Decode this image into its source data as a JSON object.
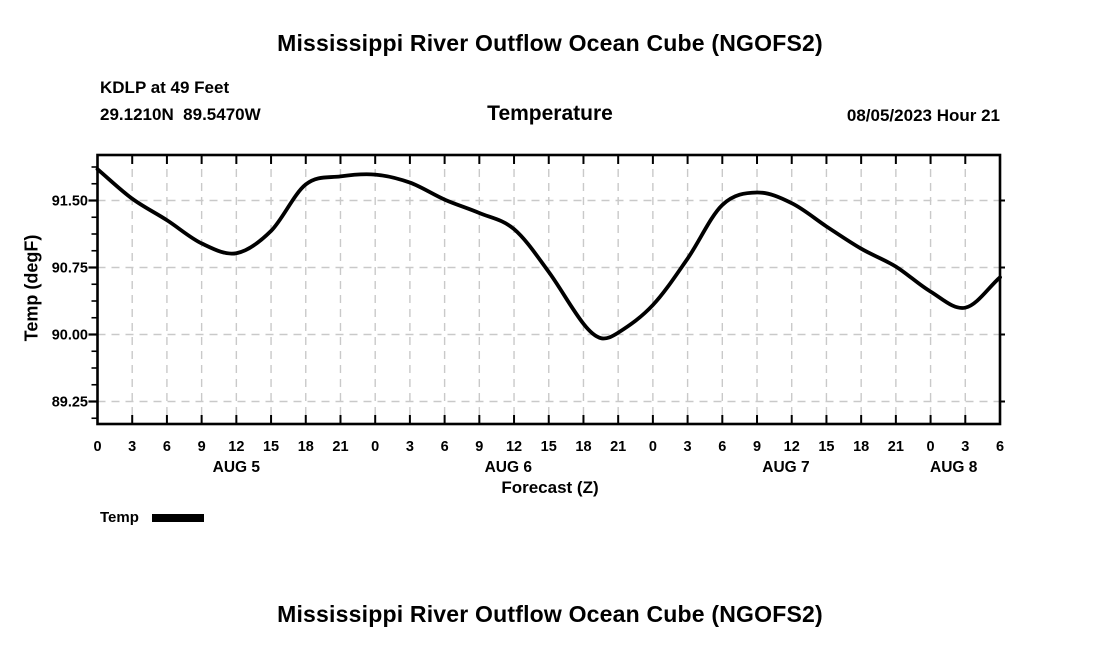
{
  "page": {
    "title_top": "Mississippi River Outflow Ocean Cube (NGOFS2)",
    "title_bottom": "Mississippi River Outflow Ocean Cube (NGOFS2)"
  },
  "header": {
    "station": "KDLP at 49 Feet",
    "coordinates": "29.1210N  89.5470W",
    "plot_heading": "Temperature",
    "datetime": "08/05/2023 Hour 21"
  },
  "legend": {
    "label": "Temp",
    "swatch_color": "#000000"
  },
  "chart_data": {
    "type": "line",
    "title": "Temperature",
    "xlabel": "Forecast (Z)",
    "ylabel": "Temp (degF)",
    "xlim_hours": [
      0,
      78
    ],
    "ylim": [
      89.0,
      92.01
    ],
    "grid": true,
    "grid_color": "#c9c9c9",
    "line_color": "#000000",
    "legend_position": "bottom-left",
    "x_tick_step_hours": 3,
    "x_tick_labels": [
      "0",
      "3",
      "6",
      "9",
      "12",
      "15",
      "18",
      "21",
      "0",
      "3",
      "6",
      "9",
      "12",
      "15",
      "18",
      "21",
      "0",
      "3",
      "6",
      "9",
      "12",
      "15",
      "18",
      "21",
      "0",
      "3",
      "6"
    ],
    "day_labels": [
      {
        "label": "AUG 5",
        "hour": 12
      },
      {
        "label": "AUG 6",
        "hour": 35.5
      },
      {
        "label": "AUG 7",
        "hour": 59.5
      },
      {
        "label": "AUG 8",
        "hour": 74
      }
    ],
    "y_major_ticks": [
      89.25,
      90.0,
      90.75,
      91.5
    ],
    "y_tick_labels": [
      "89.25",
      "90.00",
      "90.75",
      "91.50"
    ],
    "y_minor_step": 0.1875,
    "series": [
      {
        "name": "Temp",
        "color": "#000000",
        "x_hours": [
          0,
          3,
          6,
          9,
          12,
          15,
          18,
          21,
          24,
          27,
          30,
          33,
          36,
          39,
          42,
          43.5,
          45,
          48,
          51,
          54,
          57,
          60,
          63,
          66,
          69,
          72,
          75,
          78
        ],
        "values": [
          91.85,
          91.52,
          91.28,
          91.02,
          90.91,
          91.16,
          91.68,
          91.77,
          91.79,
          91.7,
          91.51,
          91.36,
          91.18,
          90.7,
          90.12,
          89.96,
          90.02,
          90.33,
          90.85,
          91.45,
          91.59,
          91.47,
          91.21,
          90.96,
          90.76,
          90.48,
          90.3,
          90.64
        ]
      }
    ]
  }
}
